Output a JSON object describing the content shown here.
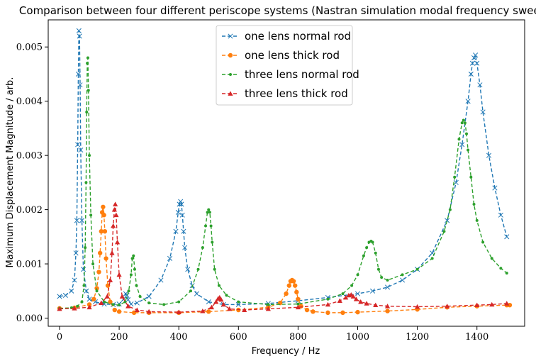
{
  "chart_data": {
    "type": "line",
    "title": "Comparison between four different periscope systems (Nastran simulation modal frequency sweep)",
    "xlabel": "Frequency / Hz",
    "ylabel": "Maximum Displacement Magnitude / arb.",
    "xlim": [
      -38,
      1560
    ],
    "ylim": [
      -0.00015,
      0.0055
    ],
    "xticks": [
      0,
      200,
      400,
      600,
      800,
      1000,
      1200,
      1400
    ],
    "yticks": [
      0.0,
      0.001,
      0.002,
      0.003,
      0.004,
      0.005
    ],
    "ytick_labels": [
      "0.000",
      "0.001",
      "0.002",
      "0.003",
      "0.004",
      "0.005"
    ],
    "grid": false,
    "legend_position": "top-center",
    "series": [
      {
        "name": "one lens normal rod",
        "color": "#1f77b4",
        "marker": "x",
        "x": [
          0,
          20,
          40,
          50,
          55,
          58,
          61,
          63,
          65,
          67,
          69,
          71,
          75,
          80,
          90,
          100,
          120,
          150,
          180,
          200,
          215,
          222,
          226,
          230,
          240,
          260,
          300,
          340,
          370,
          390,
          398,
          402,
          406,
          409,
          412,
          416,
          420,
          430,
          445,
          460,
          500,
          550,
          600,
          700,
          800,
          900,
          1000,
          1050,
          1100,
          1150,
          1200,
          1250,
          1300,
          1330,
          1350,
          1370,
          1380,
          1385,
          1390,
          1395,
          1400,
          1410,
          1420,
          1440,
          1460,
          1480,
          1500
        ],
        "y": [
          0.0004,
          0.00042,
          0.0005,
          0.0007,
          0.0012,
          0.0018,
          0.0032,
          0.0045,
          0.0053,
          0.0052,
          0.0043,
          0.0031,
          0.0018,
          0.0009,
          0.0005,
          0.00035,
          0.0003,
          0.00026,
          0.00025,
          0.00026,
          0.00035,
          0.00045,
          0.00042,
          0.00034,
          0.00026,
          0.00028,
          0.0004,
          0.0007,
          0.0011,
          0.0016,
          0.00195,
          0.0021,
          0.00215,
          0.0021,
          0.0019,
          0.0016,
          0.0013,
          0.0009,
          0.0006,
          0.00045,
          0.0003,
          0.00025,
          0.00025,
          0.00027,
          0.00032,
          0.00038,
          0.00045,
          0.0005,
          0.00057,
          0.0007,
          0.0009,
          0.0012,
          0.0018,
          0.0025,
          0.0032,
          0.004,
          0.0045,
          0.0047,
          0.0048,
          0.00485,
          0.0047,
          0.0043,
          0.0038,
          0.003,
          0.0024,
          0.0019,
          0.0015
        ]
      },
      {
        "name": "one lens thick rod",
        "color": "#ff7f0e",
        "marker": "o",
        "x": [
          0,
          50,
          100,
          115,
          125,
          132,
          136,
          140,
          143,
          146,
          149,
          152,
          156,
          162,
          170,
          185,
          200,
          250,
          300,
          400,
          500,
          600,
          700,
          740,
          760,
          770,
          775,
          780,
          785,
          790,
          795,
          800,
          810,
          830,
          850,
          900,
          950,
          1000,
          1100,
          1200,
          1300,
          1400,
          1500,
          1510
        ],
        "y": [
          0.00018,
          0.00019,
          0.00025,
          0.00035,
          0.00055,
          0.00085,
          0.0012,
          0.0016,
          0.00195,
          0.00205,
          0.0019,
          0.0016,
          0.0011,
          0.0006,
          0.0003,
          0.00015,
          0.00012,
          0.0001,
          0.0001,
          0.0001,
          0.00012,
          0.00015,
          0.0002,
          0.00028,
          0.00045,
          0.0006,
          0.00068,
          0.0007,
          0.00068,
          0.0006,
          0.00048,
          0.00035,
          0.00022,
          0.00015,
          0.00012,
          0.0001,
          0.0001,
          0.00011,
          0.00013,
          0.00016,
          0.0002,
          0.00022,
          0.00024,
          0.00024
        ]
      },
      {
        "name": "three lens normal rod",
        "color": "#2ca02c",
        "marker": ".",
        "x": [
          0,
          40,
          60,
          75,
          82,
          86,
          89,
          91,
          93,
          95,
          97,
          100,
          105,
          112,
          125,
          150,
          180,
          200,
          220,
          232,
          240,
          244,
          248,
          252,
          258,
          270,
          300,
          350,
          400,
          440,
          465,
          480,
          490,
          496,
          500,
          504,
          508,
          512,
          520,
          535,
          560,
          600,
          700,
          800,
          900,
          950,
          980,
          1000,
          1020,
          1030,
          1038,
          1045,
          1050,
          1060,
          1070,
          1080,
          1100,
          1150,
          1200,
          1250,
          1290,
          1310,
          1325,
          1340,
          1350,
          1355,
          1360,
          1365,
          1370,
          1380,
          1390,
          1400,
          1420,
          1450,
          1480,
          1500
        ],
        "y": [
          0.00018,
          0.00019,
          0.00022,
          0.0003,
          0.0006,
          0.0013,
          0.0025,
          0.0038,
          0.0047,
          0.0048,
          0.0042,
          0.003,
          0.0019,
          0.001,
          0.0005,
          0.0003,
          0.00025,
          0.00024,
          0.0003,
          0.0005,
          0.0008,
          0.0011,
          0.00115,
          0.0009,
          0.0006,
          0.0004,
          0.00028,
          0.00025,
          0.0003,
          0.0005,
          0.0009,
          0.0013,
          0.0017,
          0.00195,
          0.002,
          0.00195,
          0.0017,
          0.0014,
          0.0009,
          0.0006,
          0.00042,
          0.0003,
          0.00025,
          0.00026,
          0.00035,
          0.00045,
          0.0006,
          0.0008,
          0.00115,
          0.0013,
          0.0014,
          0.00142,
          0.0014,
          0.0012,
          0.0009,
          0.00075,
          0.0007,
          0.0008,
          0.0009,
          0.0011,
          0.0016,
          0.002,
          0.0026,
          0.0033,
          0.0036,
          0.00365,
          0.0036,
          0.0034,
          0.0031,
          0.0026,
          0.0021,
          0.0018,
          0.0014,
          0.0011,
          0.00092,
          0.00083
        ]
      },
      {
        "name": "three lens thick rod",
        "color": "#d62728",
        "marker": "^",
        "x": [
          0,
          50,
          100,
          140,
          160,
          170,
          176,
          180,
          184,
          187,
          190,
          194,
          200,
          210,
          230,
          260,
          300,
          400,
          480,
          510,
          525,
          532,
          537,
          542,
          550,
          570,
          620,
          700,
          800,
          900,
          940,
          960,
          970,
          978,
          985,
          995,
          1010,
          1030,
          1060,
          1100,
          1200,
          1300,
          1400,
          1450,
          1500
        ],
        "y": [
          0.00017,
          0.00018,
          0.0002,
          0.00028,
          0.0004,
          0.0007,
          0.0012,
          0.0017,
          0.002,
          0.0021,
          0.0019,
          0.0014,
          0.0008,
          0.0004,
          0.00022,
          0.00015,
          0.00012,
          0.00011,
          0.00013,
          0.0002,
          0.0003,
          0.00036,
          0.00038,
          0.00034,
          0.00025,
          0.00017,
          0.00015,
          0.00017,
          0.0002,
          0.00025,
          0.00032,
          0.00038,
          0.00042,
          0.00043,
          0.0004,
          0.00035,
          0.0003,
          0.00027,
          0.00024,
          0.00022,
          0.00021,
          0.00022,
          0.00024,
          0.00025,
          0.00027
        ]
      }
    ]
  }
}
